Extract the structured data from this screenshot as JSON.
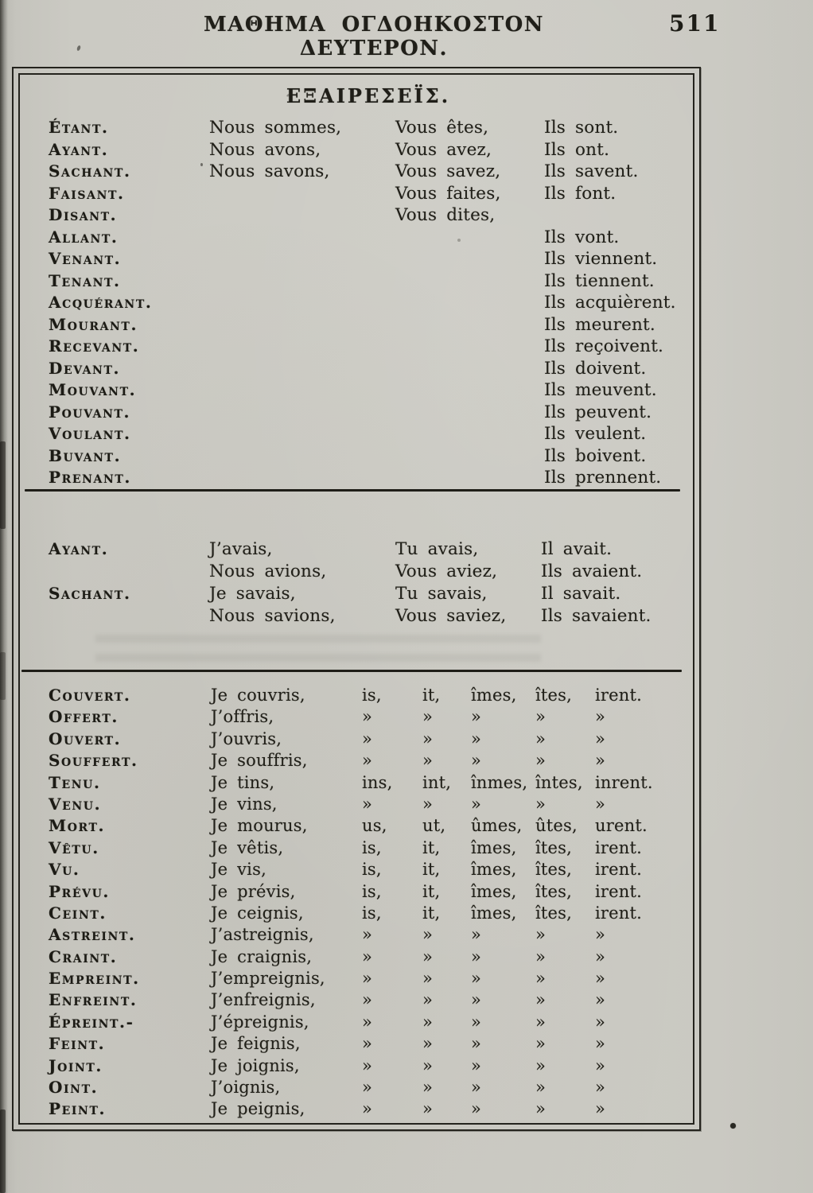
{
  "colors": {
    "paper": "#cdccc5",
    "ink": "#24221b"
  },
  "header": {
    "title": "ΜΑΘΗΜΑ ΟΓΔΟΗΚΟΣΤΟΝ ΔΕΥΤΕΡΟΝ.",
    "page_number": "511"
  },
  "box": {
    "heading": "ΕΞΑΙΡΕΣΕΪΣ.",
    "present_table": {
      "rows": [
        {
          "label": "Étant.",
          "c2": "Nous sommes,",
          "c3": "Vous êtes,",
          "c4": "Ils sont."
        },
        {
          "label": "Ayant.",
          "c2": "Nous avons,",
          "c3": "Vous avez,",
          "c4": "Ils ont."
        },
        {
          "label": "Sachant.",
          "c2": "Nous savons,",
          "c3": "Vous savez,",
          "c4": "Ils savent."
        },
        {
          "label": "Faisant.",
          "c2": "",
          "c3": "Vous faites,",
          "c4": "Ils font."
        },
        {
          "label": "Disant.",
          "c2": "",
          "c3": "Vous dites,",
          "c4": ""
        },
        {
          "label": "Allant.",
          "c2": "",
          "c3": "",
          "c4": "Ils vont."
        },
        {
          "label": "Venant.",
          "c2": "",
          "c3": "",
          "c4": "Ils viennent."
        },
        {
          "label": "Tenant.",
          "c2": "",
          "c3": "",
          "c4": "Ils tiennent."
        },
        {
          "label": "Acquérant.",
          "c2": "",
          "c3": "",
          "c4": "Ils acquièrent."
        },
        {
          "label": "Mourant.",
          "c2": "",
          "c3": "",
          "c4": "Ils meurent."
        },
        {
          "label": "Recevant.",
          "c2": "",
          "c3": "",
          "c4": "Ils reçoivent."
        },
        {
          "label": "Devant.",
          "c2": "",
          "c3": "",
          "c4": "Ils doivent."
        },
        {
          "label": "Mouvant.",
          "c2": "",
          "c3": "",
          "c4": "Ils meuvent."
        },
        {
          "label": "Pouvant.",
          "c2": "",
          "c3": "",
          "c4": "Ils peuvent."
        },
        {
          "label": "Voulant.",
          "c2": "",
          "c3": "",
          "c4": "Ils veulent."
        },
        {
          "label": "Buvant.",
          "c2": "",
          "c3": "",
          "c4": "Ils boivent."
        },
        {
          "label": "Prenant.",
          "c2": "",
          "c3": "",
          "c4": "Ils prennent."
        }
      ]
    },
    "imperfect_table": {
      "rows": [
        {
          "label": "Ayant.",
          "c2": "J’avais,",
          "c3": "Tu avais,",
          "c4": "Il avait."
        },
        {
          "label": "",
          "c2": "Nous avions,",
          "c3": "Vous aviez,",
          "c4": "Ils avaient."
        },
        {
          "label": "Sachant.",
          "c2": "Je savais,",
          "c3": "Tu savais,",
          "c4": "Il savait."
        },
        {
          "label": "",
          "c2": "Nous savions,",
          "c3": "Vous saviez,",
          "c4": "Ils savaient."
        }
      ]
    },
    "past_table": {
      "rows": [
        {
          "label": "Couvert.",
          "c2": "Je couvris,",
          "e1": "is,",
          "e2": "it,",
          "e3": "îmes,",
          "e4": "îtes,",
          "e5": "irent."
        },
        {
          "label": "Offert.",
          "c2": "J’offris,",
          "e1": "»",
          "e2": "»",
          "e3": "»",
          "e4": "»",
          "e5": "»"
        },
        {
          "label": "Ouvert.",
          "c2": "J’ouvris,",
          "e1": "»",
          "e2": "»",
          "e3": "»",
          "e4": "»",
          "e5": "»"
        },
        {
          "label": "Souffert.",
          "c2": "Je souffris,",
          "e1": "»",
          "e2": "»",
          "e3": "»",
          "e4": "»",
          "e5": "»"
        },
        {
          "label": "Tenu.",
          "c2": "Je tins,",
          "e1": "ins,",
          "e2": "int,",
          "e3": "înmes,",
          "e4": "întes,",
          "e5": "inrent."
        },
        {
          "label": "Venu.",
          "c2": "Je vins,",
          "e1": "»",
          "e2": "»",
          "e3": "»",
          "e4": "»",
          "e5": "»"
        },
        {
          "label": "Mort.",
          "c2": "Je mourus,",
          "e1": "us,",
          "e2": "ut,",
          "e3": "ûmes,",
          "e4": "ûtes,",
          "e5": "urent."
        },
        {
          "label": "Vêtu.",
          "c2": "Je vêtis,",
          "e1": "is,",
          "e2": "it,",
          "e3": "îmes,",
          "e4": "îtes,",
          "e5": "irent."
        },
        {
          "label": "Vu.",
          "c2": "Je vis,",
          "e1": "is,",
          "e2": "it,",
          "e3": "îmes,",
          "e4": "îtes,",
          "e5": "irent."
        },
        {
          "label": "Prévu.",
          "c2": "Je prévis,",
          "e1": "is,",
          "e2": "it,",
          "e3": "îmes,",
          "e4": "îtes,",
          "e5": "irent."
        },
        {
          "label": "Ceint.",
          "c2": "Je ceignis,",
          "e1": "is,",
          "e2": "it,",
          "e3": "îmes,",
          "e4": "îtes,",
          "e5": "irent."
        },
        {
          "label": "Astreint.",
          "c2": "J’astreignis,",
          "e1": "»",
          "e2": "»",
          "e3": "»",
          "e4": "»",
          "e5": "»"
        },
        {
          "label": "Craint.",
          "c2": "Je craignis,",
          "e1": "»",
          "e2": "»",
          "e3": "»",
          "e4": "»",
          "e5": "»"
        },
        {
          "label": "Empreint.",
          "c2": "J’empreignis,",
          "e1": "»",
          "e2": "»",
          "e3": "»",
          "e4": "»",
          "e5": "»"
        },
        {
          "label": "Enfreint.",
          "c2": "J’enfreignis,",
          "e1": "»",
          "e2": "»",
          "e3": "»",
          "e4": "»",
          "e5": "»"
        },
        {
          "label": "Épreint.-",
          "c2": "J’épreignis,",
          "e1": "»",
          "e2": "»",
          "e3": "»",
          "e4": "»",
          "e5": "»"
        },
        {
          "label": "Feint.",
          "c2": "Je feignis,",
          "e1": "»",
          "e2": "»",
          "e3": "»",
          "e4": "»",
          "e5": "»"
        },
        {
          "label": "Joint.",
          "c2": "Je joignis,",
          "e1": "»",
          "e2": "»",
          "e3": "»",
          "e4": "»",
          "e5": "»"
        },
        {
          "label": "Oint.",
          "c2": "J’oignis,",
          "e1": "»",
          "e2": "»",
          "e3": "»",
          "e4": "»",
          "e5": "»"
        },
        {
          "label": "Peint.",
          "c2": "Je peignis,",
          "e1": "»",
          "e2": "»",
          "e3": "»",
          "e4": "»",
          "e5": "»"
        }
      ]
    }
  }
}
